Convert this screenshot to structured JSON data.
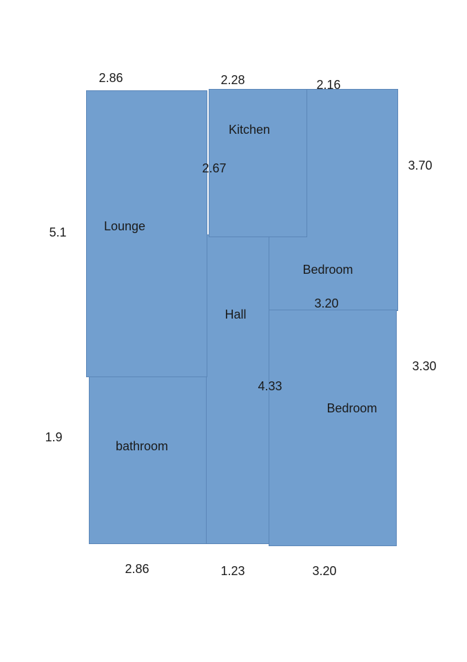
{
  "floor_plan": {
    "fill_color": "#729fcf",
    "rooms": {
      "lounge": "Lounge",
      "kitchen": "Kitchen",
      "hall": "Hall",
      "bedroom_1": "Bedroom",
      "bedroom_2": "Bedroom",
      "bathroom": "bathroom"
    },
    "dimensions": {
      "top_lounge": "2.86",
      "top_kitchen": "2.28",
      "top_bedroom": "2.16",
      "left_lounge": "5.1",
      "left_bathroom": "1.9",
      "right_bedroom_1": "3.70",
      "right_bedroom_2": "3.30",
      "kitchen_inner": "2.67",
      "bedroom_divider": "3.20",
      "hall_inner": "4.33",
      "bottom_bathroom": "2.86",
      "bottom_hall": "1.23",
      "bottom_bedroom": "3.20"
    }
  }
}
